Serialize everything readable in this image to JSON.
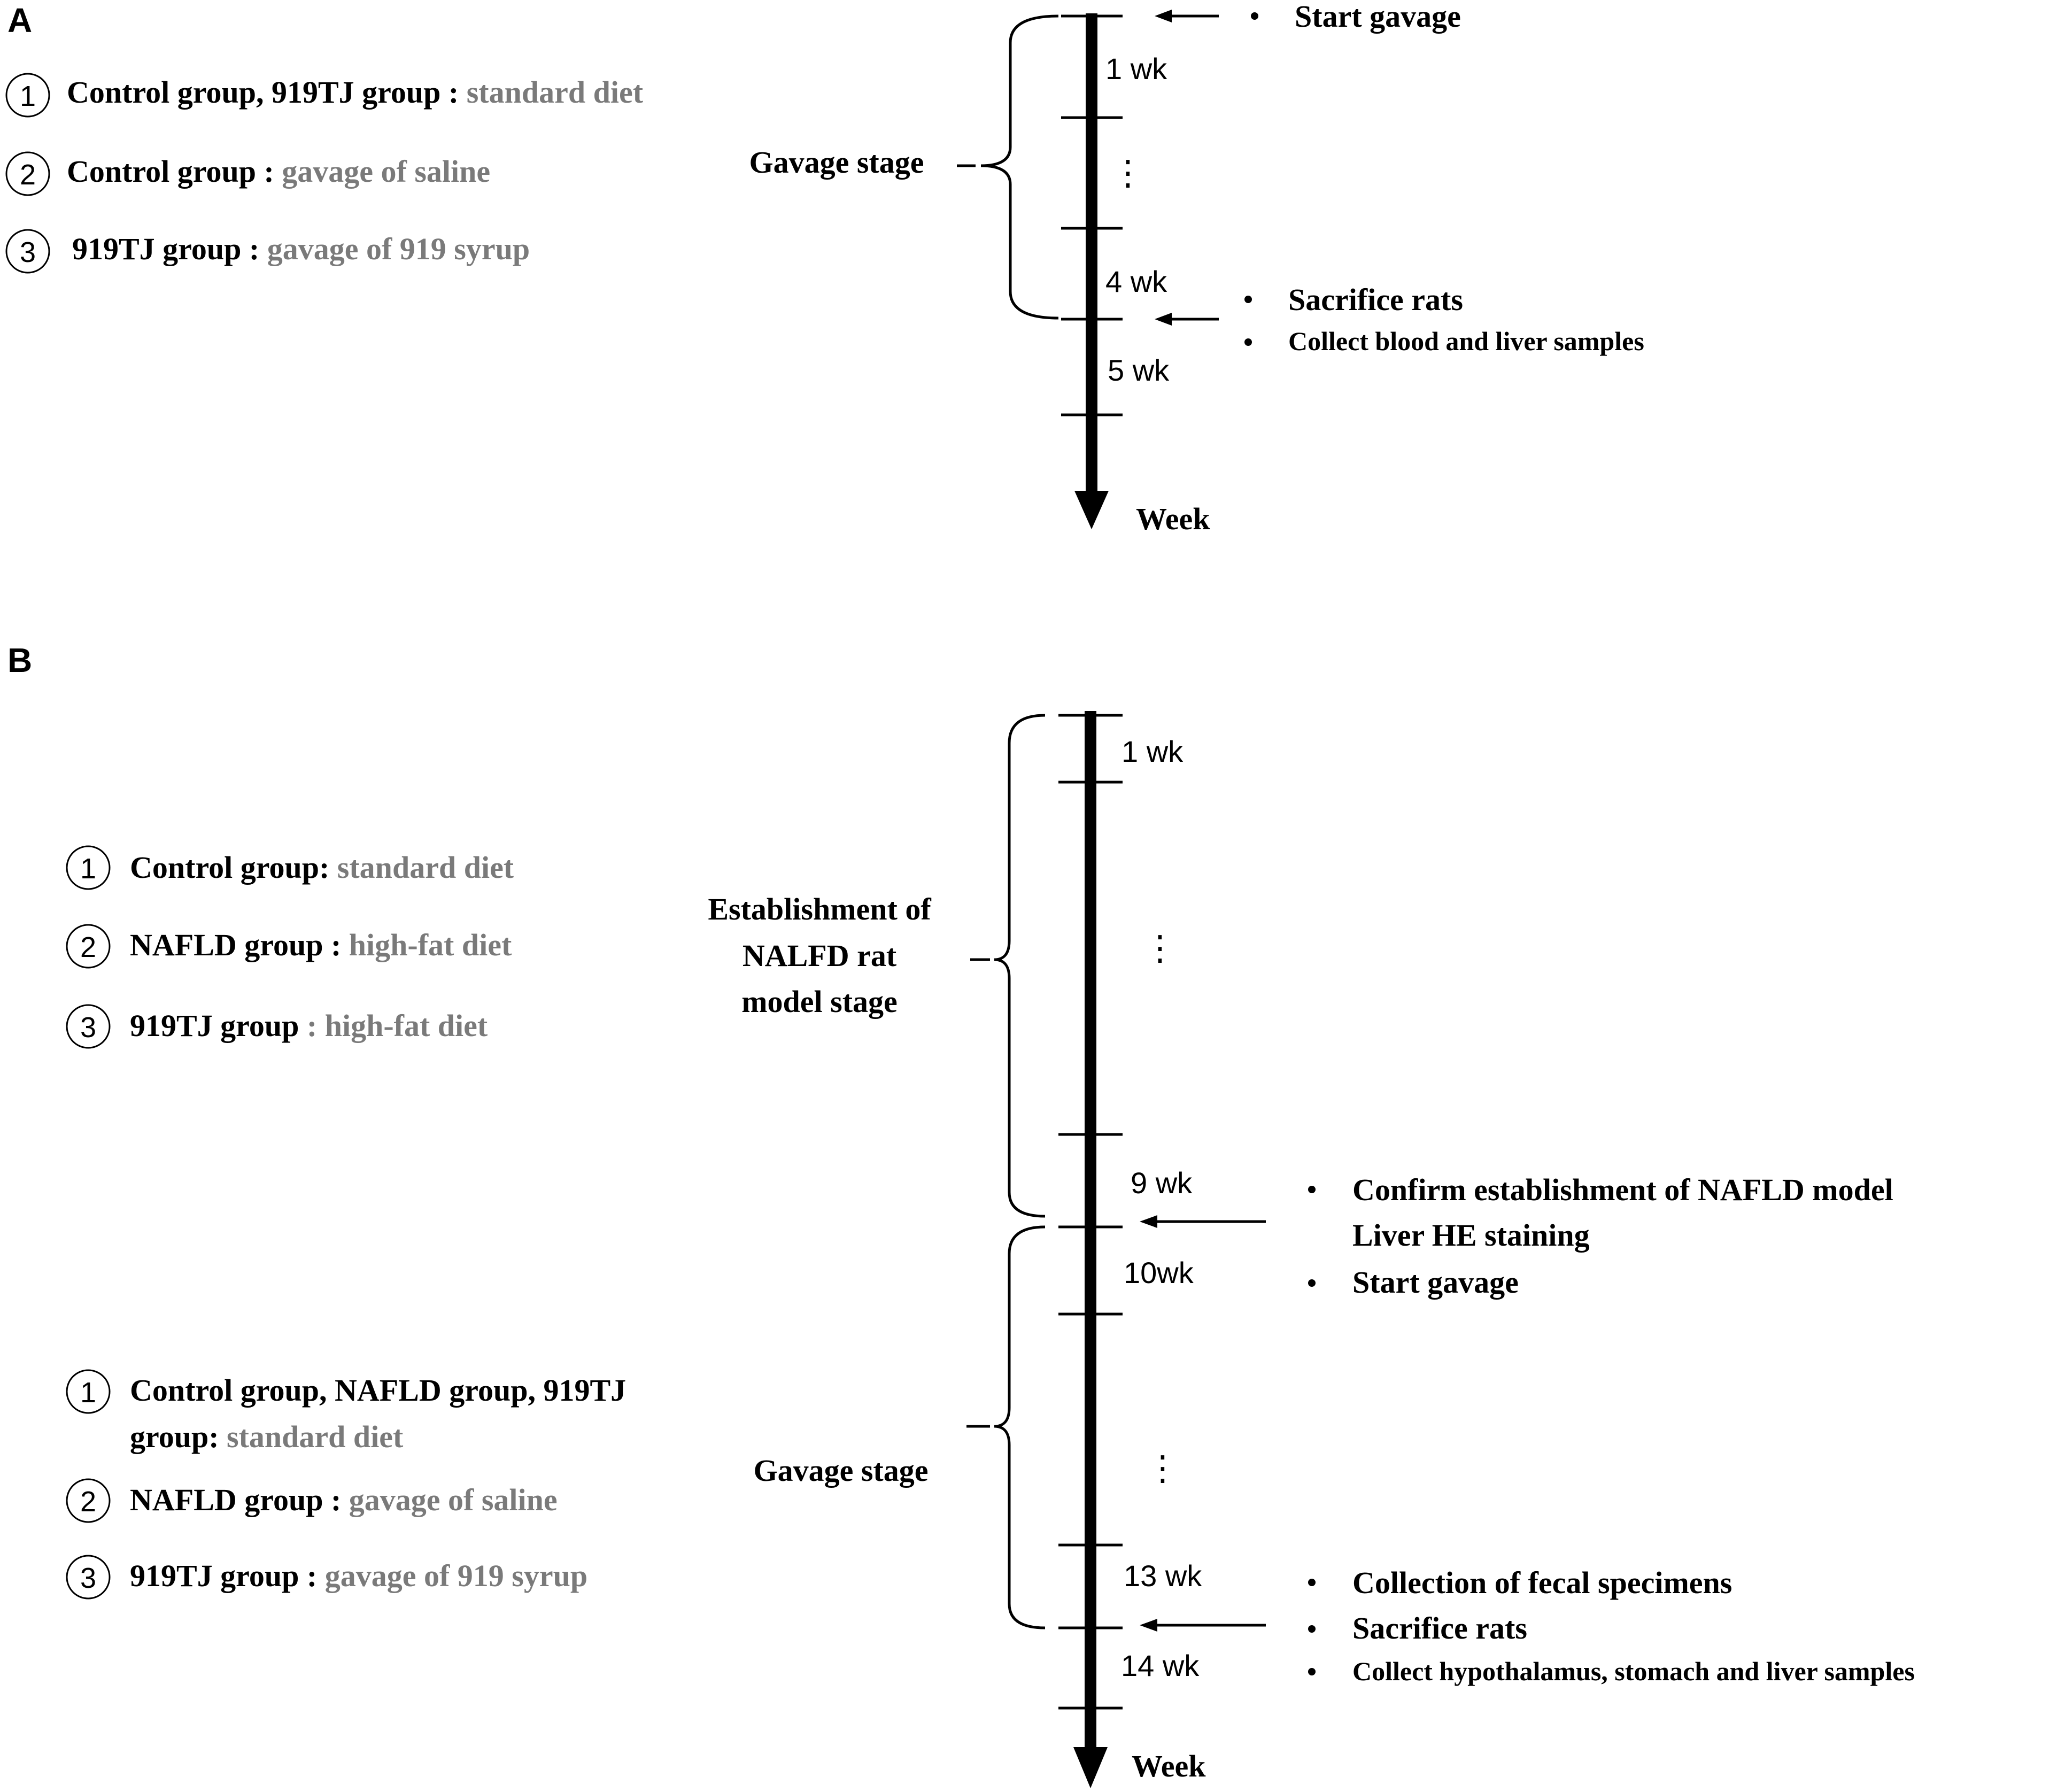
{
  "panel_a": {
    "label": "A",
    "groups": [
      {
        "num": "1",
        "bold": "Control group, 919TJ group : ",
        "gray": "standard diet"
      },
      {
        "num": "2",
        "bold": "Control group : ",
        "gray": "gavage of saline"
      },
      {
        "num": "3",
        "bold": "919TJ group : ",
        "gray": "gavage of 919 syrup"
      }
    ],
    "stage": "Gavage stage",
    "weeks": [
      "1 wk",
      "4 wk",
      "5 wk"
    ],
    "ellipsis": "⋮",
    "axis_label": "Week",
    "annotations": {
      "start": "Start gavage",
      "sacrifice": "Sacrifice rats",
      "collect": "Collect blood and liver samples"
    }
  },
  "panel_b": {
    "label": "B",
    "stage1_groups": [
      {
        "num": "1",
        "bold": "Control group: ",
        "gray": "standard diet"
      },
      {
        "num": "2",
        "bold": "NAFLD group : ",
        "gray": "high-fat diet"
      },
      {
        "num": "3",
        "bold": "919TJ group ",
        "gray": ": high-fat diet"
      }
    ],
    "stage1_label": [
      "Establishment of",
      "NALFD rat",
      "model stage"
    ],
    "stage2_groups": [
      {
        "num": "1",
        "bold_line1": "Control group, NAFLD group, 919TJ",
        "bold_line2": "group: ",
        "gray": "standard diet"
      },
      {
        "num": "2",
        "bold": "NAFLD group : ",
        "gray": "gavage of saline"
      },
      {
        "num": "3",
        "bold": "919TJ group : ",
        "gray": "gavage of 919 syrup"
      }
    ],
    "stage2_label": "Gavage stage",
    "weeks": [
      "1 wk",
      "9 wk",
      "10wk",
      "13 wk",
      "14 wk"
    ],
    "ellipsis": "⋮",
    "axis_label": "Week",
    "annotations": {
      "confirm": "Confirm establishment of NAFLD model",
      "he": "Liver HE staining",
      "start": "Start gavage",
      "fecal": "Collection of fecal specimens",
      "sacrifice": "Sacrifice rats",
      "collect": "Collect hypothalamus, stomach and liver samples"
    }
  }
}
